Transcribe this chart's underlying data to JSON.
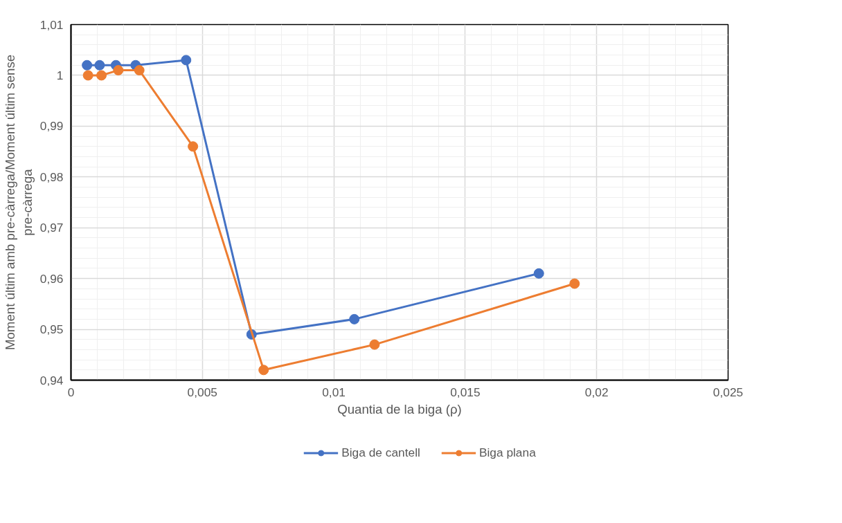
{
  "chart_data": {
    "type": "line",
    "xlabel": "Quantia de la biga (ρ)",
    "ylabel": "Moment últim amb pre-càrrega/Moment últim sense pre-càrrega",
    "xlim": [
      0,
      0.025
    ],
    "xticks": [
      {
        "value": 0,
        "label": "0"
      },
      {
        "value": 0.005,
        "label": "0,005"
      },
      {
        "value": 0.01,
        "label": "0,01"
      },
      {
        "value": 0.015,
        "label": "0,015"
      },
      {
        "value": 0.02,
        "label": "0,02"
      },
      {
        "value": 0.025,
        "label": "0,025"
      }
    ],
    "ylim": [
      0.94,
      1.01
    ],
    "yticks": [
      {
        "value": 0.94,
        "label": "0,94"
      },
      {
        "value": 0.95,
        "label": "0,95"
      },
      {
        "value": 0.96,
        "label": "0,96"
      },
      {
        "value": 0.97,
        "label": "0,97"
      },
      {
        "value": 0.98,
        "label": "0,98"
      },
      {
        "value": 0.99,
        "label": "0,99"
      },
      {
        "value": 1,
        "label": "1"
      },
      {
        "value": 1.01,
        "label": "1,01"
      }
    ],
    "grid": true,
    "legend": "bottom",
    "marker": "circle",
    "line_style": "solid",
    "series": [
      {
        "name": "Biga de cantell",
        "color": "#4472c4",
        "x": [
          0.00061,
          0.00109,
          0.00171,
          0.00246,
          0.00438,
          0.00687,
          0.01078,
          0.0178
        ],
        "values": [
          1.002,
          1.002,
          1.002,
          1.002,
          1.003,
          0.949,
          0.952,
          0.961
        ]
      },
      {
        "name": "Biga plana",
        "color": "#ed7d31",
        "x": [
          0.00065,
          0.00116,
          0.0018,
          0.0026,
          0.00464,
          0.00733,
          0.01155,
          0.01916
        ],
        "values": [
          1.0,
          1.0,
          1.001,
          1.001,
          0.986,
          0.942,
          0.947,
          0.959
        ]
      }
    ]
  }
}
